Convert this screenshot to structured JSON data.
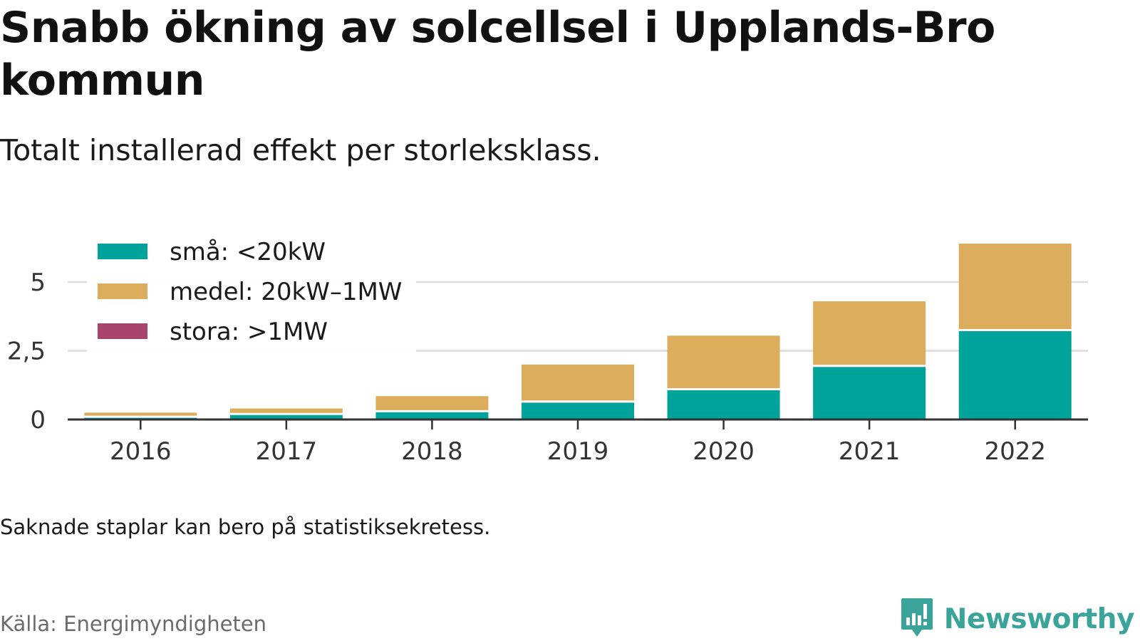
{
  "header": {
    "title": "Snabb ökning av solcellsel i Upplands-Bro kommun",
    "subtitle": "Totalt installerad effekt per storleksklass."
  },
  "footer": {
    "note": "Saknade staplar kan bero på statistiksekretess.",
    "source": "Källa: Energimyndigheten",
    "brand": "Newsworthy",
    "brand_icon": "bar-chart-speech-bubble-icon"
  },
  "chart_data": {
    "type": "bar",
    "stacked": true,
    "categories": [
      "2016",
      "2017",
      "2018",
      "2019",
      "2020",
      "2021",
      "2022"
    ],
    "series": [
      {
        "name": "små: <20kW",
        "color": "#00a39a",
        "values": [
          0.1,
          0.2,
          0.3,
          0.65,
          1.1,
          1.95,
          3.25
        ]
      },
      {
        "name": "medel: 20kW–1MW",
        "color": "#dbad5c",
        "values": [
          0.15,
          0.2,
          0.55,
          1.35,
          1.95,
          2.35,
          3.15
        ]
      },
      {
        "name": "stora: >1MW",
        "color": "#a8436a",
        "values": [
          0,
          0,
          0,
          0,
          0,
          0,
          0
        ]
      }
    ],
    "y_ticks": [
      0,
      2.5,
      5
    ],
    "y_tick_labels": [
      "0",
      "2,5",
      "5"
    ],
    "ylim": [
      0,
      6.6
    ],
    "xlabel": "",
    "ylabel": "",
    "grid": true,
    "legend_position": "top-left"
  }
}
